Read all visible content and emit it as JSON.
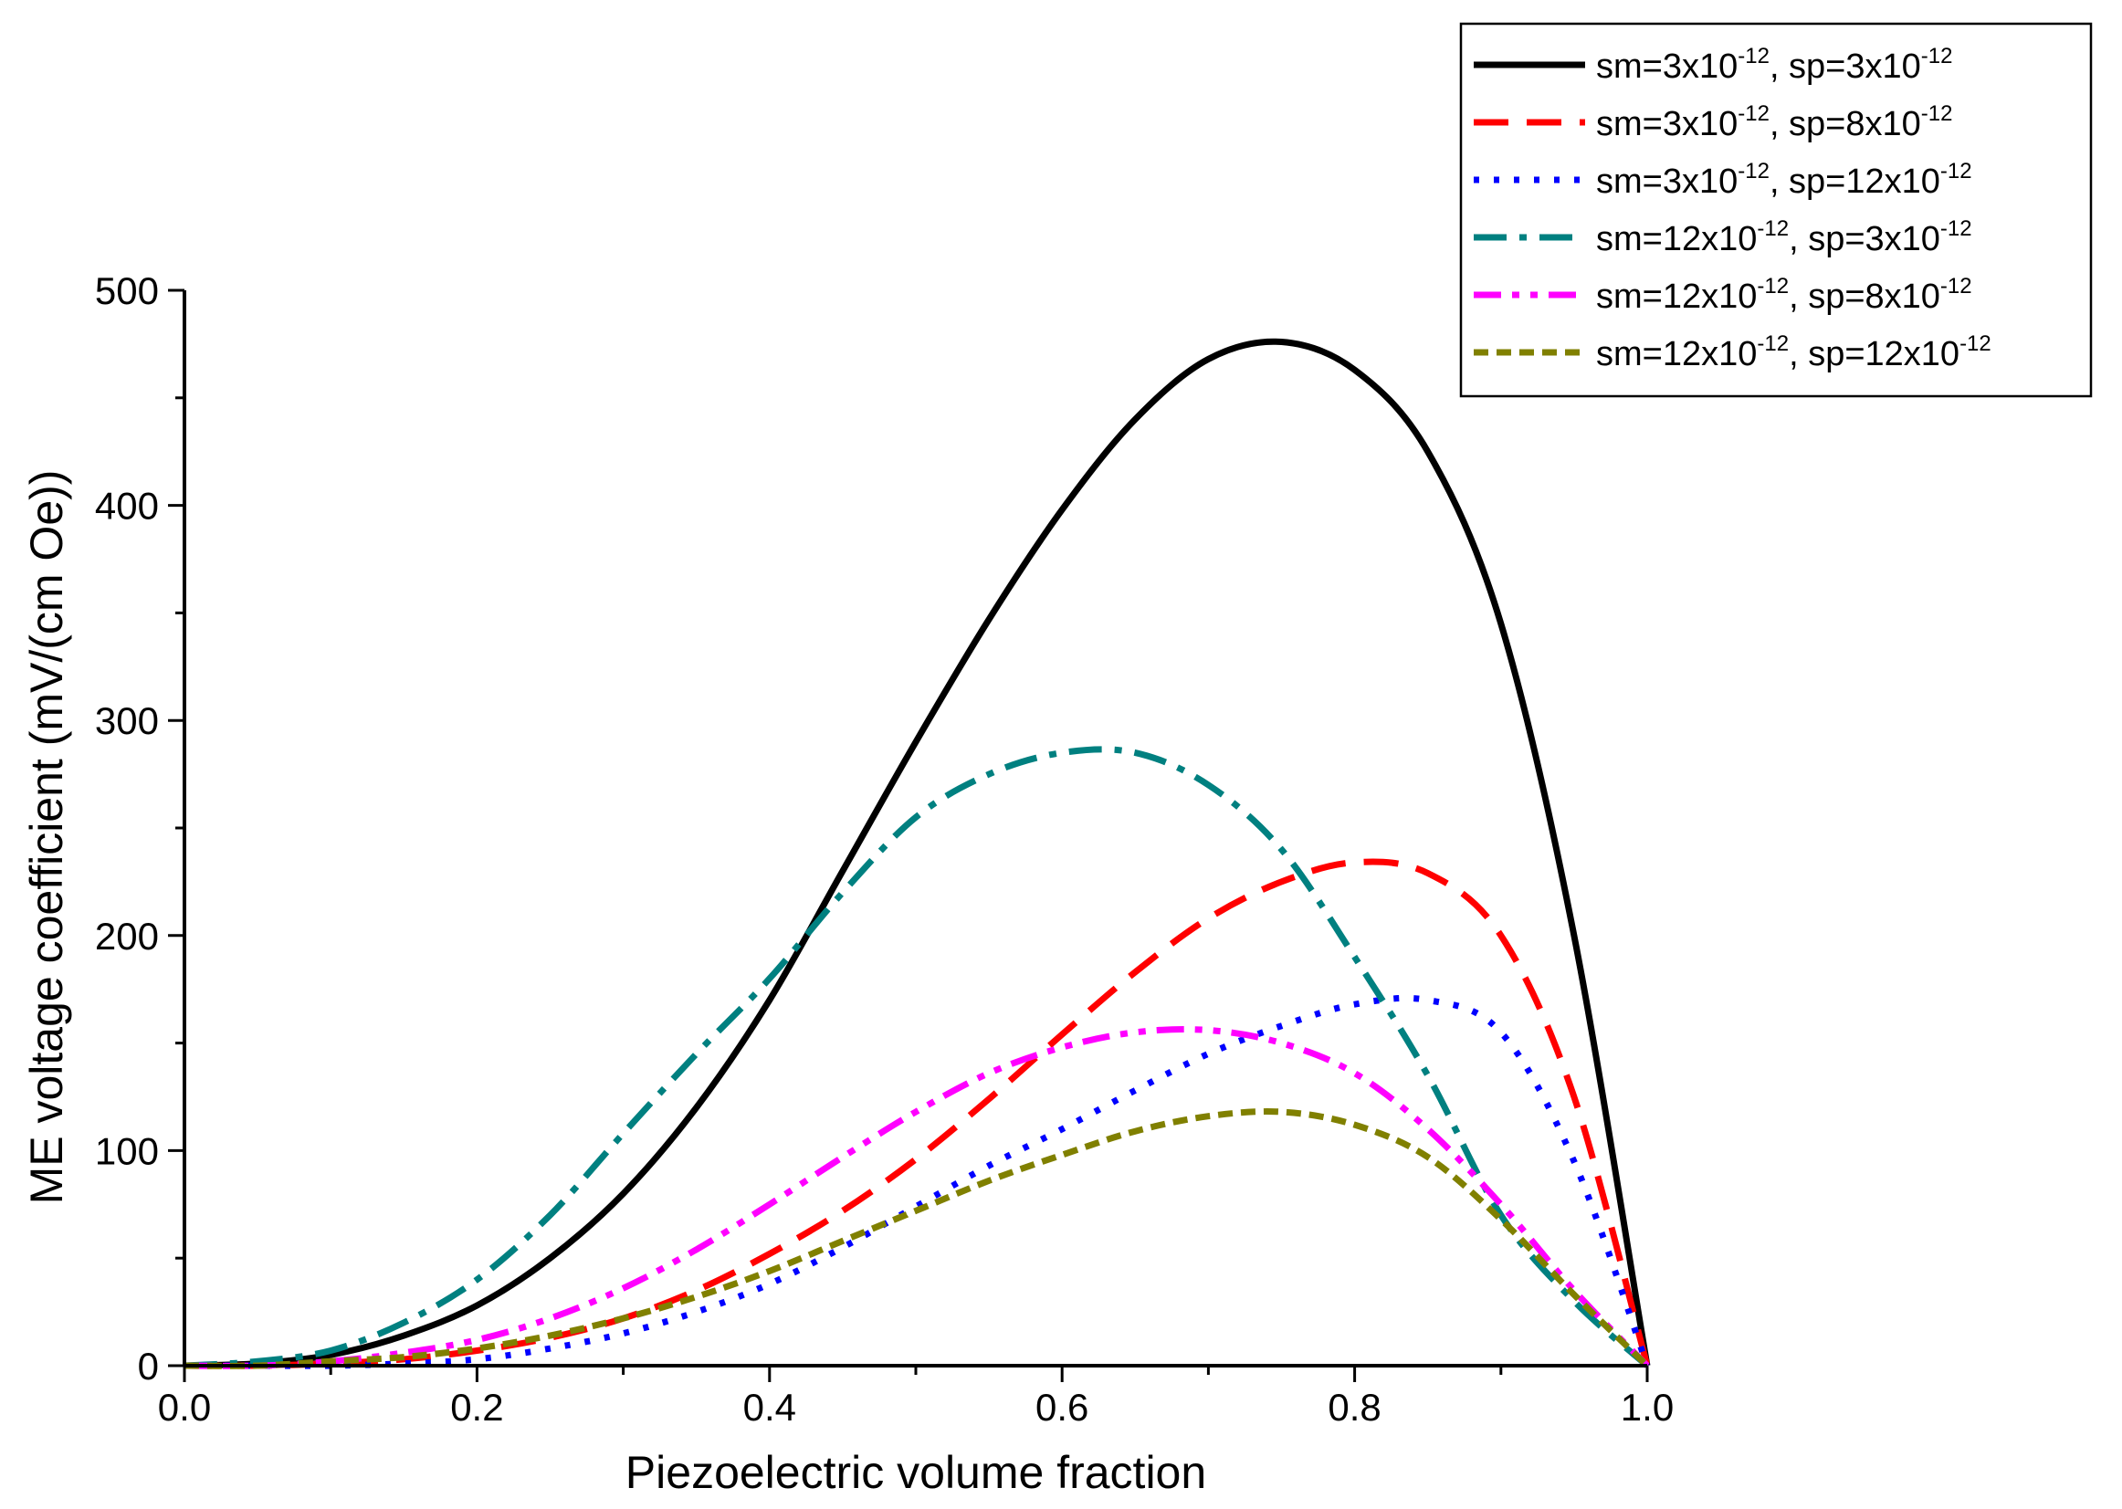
{
  "chart_data": {
    "type": "line",
    "title": "",
    "xlabel": "Piezoelectric volume fraction",
    "ylabel": "ME voltage coefficient (mV/(cm Oe))",
    "xlim": [
      0,
      1
    ],
    "ylim": [
      0,
      500
    ],
    "xticks": [
      0.0,
      0.2,
      0.4,
      0.6,
      0.8,
      1.0
    ],
    "xtick_labels": [
      "0.0",
      "0.2",
      "0.4",
      "0.6",
      "0.8",
      "1.0"
    ],
    "yticks": [
      0,
      100,
      200,
      300,
      400,
      500
    ],
    "ytick_labels": [
      "0",
      "100",
      "200",
      "300",
      "400",
      "500"
    ],
    "grid": false,
    "legend_position": "top-right",
    "series": [
      {
        "name": "sm=3x10-12, sp=3x10-12",
        "label": {
          "sm_base": "sm=3x10",
          "sm_exp": "-12",
          "sp_base": ", sp=3x10",
          "sp_exp": "-12"
        },
        "color": "#000000",
        "dash": "solid",
        "x": [
          0,
          0.05,
          0.1,
          0.15,
          0.2,
          0.25,
          0.3,
          0.35,
          0.4,
          0.45,
          0.5,
          0.55,
          0.6,
          0.65,
          0.7,
          0.75,
          0.8,
          0.85,
          0.9,
          0.95,
          1.0
        ],
        "y": [
          0,
          1,
          5,
          14,
          28,
          50,
          80,
          120,
          170,
          230,
          290,
          347,
          398,
          440,
          468,
          476,
          463,
          425,
          345,
          200,
          0
        ]
      },
      {
        "name": "sm=3x10-12, sp=8x10-12",
        "label": {
          "sm_base": "sm=3x10",
          "sm_exp": "-12",
          "sp_base": ", sp=8x10",
          "sp_exp": "-12"
        },
        "color": "#ff0000",
        "dash": "dash",
        "x": [
          0,
          0.05,
          0.1,
          0.15,
          0.2,
          0.25,
          0.3,
          0.35,
          0.4,
          0.45,
          0.5,
          0.55,
          0.6,
          0.65,
          0.7,
          0.75,
          0.8,
          0.85,
          0.9,
          0.95,
          1.0
        ],
        "y": [
          0,
          0,
          1,
          3,
          7,
          13,
          22,
          35,
          52,
          72,
          96,
          124,
          154,
          183,
          208,
          225,
          234,
          229,
          200,
          125,
          0
        ]
      },
      {
        "name": "sm=3x10-12, sp=12x10-12",
        "label": {
          "sm_base": "sm=3x10",
          "sm_exp": "-12",
          "sp_base": ", sp=12x10",
          "sp_exp": "-12"
        },
        "color": "#0000ff",
        "dash": "dot",
        "x": [
          0,
          0.05,
          0.1,
          0.15,
          0.2,
          0.25,
          0.3,
          0.35,
          0.4,
          0.45,
          0.5,
          0.55,
          0.6,
          0.65,
          0.7,
          0.75,
          0.8,
          0.85,
          0.9,
          0.95,
          1.0
        ],
        "y": [
          0,
          0,
          0,
          1,
          3,
          8,
          15,
          25,
          38,
          55,
          74,
          93,
          110,
          128,
          145,
          158,
          168,
          170,
          155,
          95,
          0
        ]
      },
      {
        "name": "sm=12x10-12, sp=3x10-12",
        "label": {
          "sm_base": "sm=12x10",
          "sm_exp": "-12",
          "sp_base": ", sp=3x10",
          "sp_exp": "-12"
        },
        "color": "#008080",
        "dash": "dashdot",
        "x": [
          0,
          0.05,
          0.1,
          0.15,
          0.2,
          0.25,
          0.3,
          0.35,
          0.4,
          0.45,
          0.5,
          0.55,
          0.6,
          0.65,
          0.7,
          0.75,
          0.8,
          0.85,
          0.9,
          0.95,
          1.0
        ],
        "y": [
          0,
          2,
          7,
          20,
          40,
          70,
          108,
          145,
          180,
          220,
          255,
          275,
          285,
          285,
          270,
          240,
          190,
          135,
          70,
          30,
          0
        ]
      },
      {
        "name": "sm=12x10-12, sp=8x10-12",
        "label": {
          "sm_base": "sm=12x10",
          "sm_exp": "-12",
          "sp_base": ", sp=8x10",
          "sp_exp": "-12"
        },
        "color": "#ff00ff",
        "dash": "dashdotdot",
        "x": [
          0,
          0.05,
          0.1,
          0.15,
          0.2,
          0.25,
          0.3,
          0.35,
          0.4,
          0.45,
          0.5,
          0.55,
          0.6,
          0.65,
          0.7,
          0.75,
          0.8,
          0.85,
          0.9,
          0.95,
          1.0
        ],
        "y": [
          0,
          0,
          2,
          6,
          12,
          22,
          36,
          54,
          75,
          97,
          118,
          136,
          148,
          155,
          156,
          150,
          136,
          110,
          75,
          35,
          0
        ]
      },
      {
        "name": "sm=12x10-12, sp=12x10-12",
        "label": {
          "sm_base": "sm=12x10",
          "sm_exp": "-12",
          "sp_base": ", sp=12x10",
          "sp_exp": "-12"
        },
        "color": "#808000",
        "dash": "shortdash",
        "x": [
          0,
          0.05,
          0.1,
          0.15,
          0.2,
          0.25,
          0.3,
          0.35,
          0.4,
          0.45,
          0.5,
          0.55,
          0.6,
          0.65,
          0.7,
          0.75,
          0.8,
          0.85,
          0.9,
          0.95,
          1.0
        ],
        "y": [
          0,
          0,
          2,
          4,
          8,
          14,
          22,
          32,
          44,
          58,
          72,
          86,
          98,
          109,
          116,
          118,
          112,
          97,
          68,
          33,
          0
        ]
      }
    ]
  }
}
